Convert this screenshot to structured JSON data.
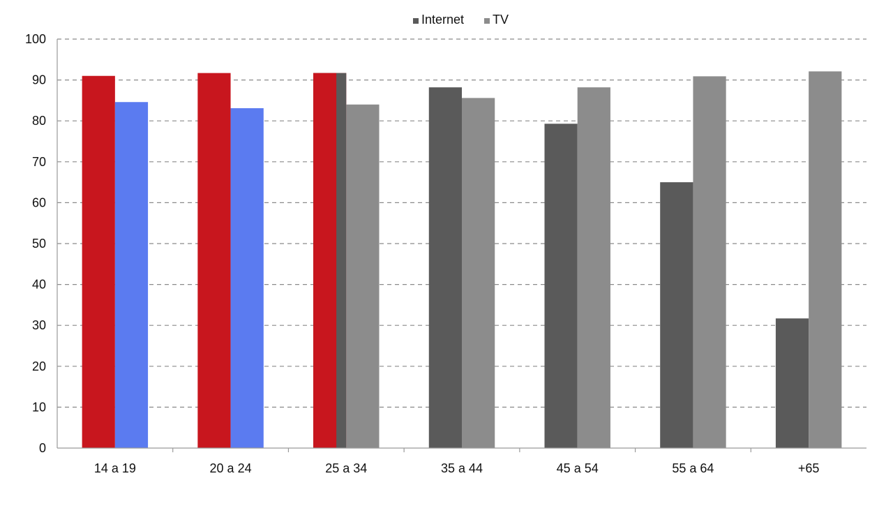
{
  "chart_data": {
    "type": "bar",
    "title": "",
    "xlabel": "",
    "ylabel": "",
    "ylim": [
      0,
      100
    ],
    "yticks": [
      0,
      10,
      20,
      30,
      40,
      50,
      60,
      70,
      80,
      90,
      100
    ],
    "grid": true,
    "legend_position": "top-center",
    "categories": [
      "14 a 19",
      "20 a 24",
      "25 a 34",
      "35 a 44",
      "45 a 54",
      "55 a 64",
      "+65"
    ],
    "series": [
      {
        "name": "Internet",
        "color": "#5a5a5a",
        "values": [
          91,
          91.7,
          91.7,
          88.2,
          79.3,
          65,
          31.7
        ]
      },
      {
        "name": "TV",
        "color": "#8c8c8c",
        "values": [
          84.6,
          83.1,
          84,
          85.6,
          88.2,
          90.9,
          92.1
        ]
      }
    ],
    "highlight": {
      "internet_color": "#c8161e",
      "tv_color": "#5b7bf0",
      "internet_categories": [
        0,
        1,
        2
      ],
      "tv_categories": [
        0,
        1
      ],
      "partial_category": 2,
      "partial_overlay_fraction": 0.7
    }
  }
}
